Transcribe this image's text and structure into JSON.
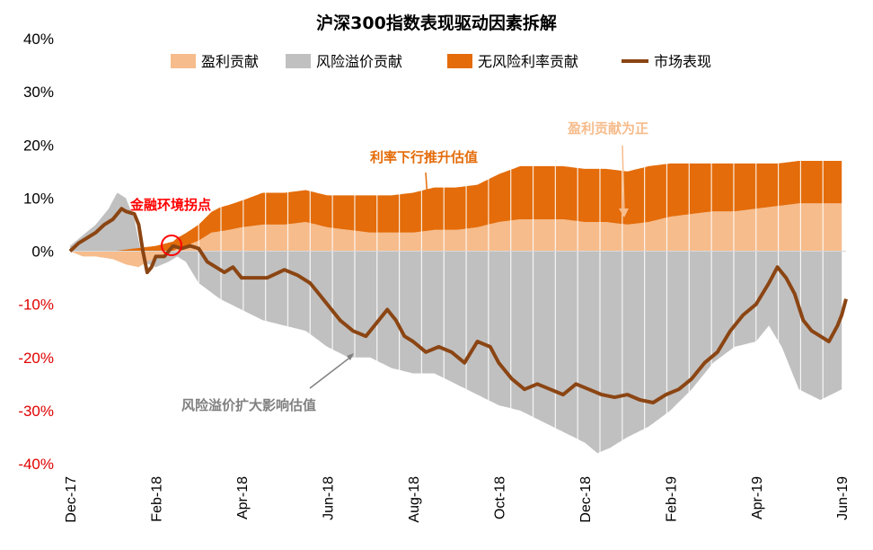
{
  "chart_data": {
    "type": "area",
    "title": "沪深300指数表现驱动因素拆解",
    "ylim": [
      -40,
      40
    ],
    "y_ticks": [
      "40%",
      "30%",
      "20%",
      "10%",
      "0%",
      "-10%",
      "-20%",
      "-30%",
      "-40%"
    ],
    "x_ticks": [
      "Dec-17",
      "Feb-18",
      "Apr-18",
      "Jun-18",
      "Aug-18",
      "Oct-18",
      "Dec-18",
      "Feb-19",
      "Apr-19",
      "Jun-19"
    ],
    "x_tick_months": [
      0,
      2,
      4,
      6,
      8,
      10,
      12,
      14,
      16,
      18
    ],
    "x_range_months": [
      0,
      18.1
    ],
    "series": [
      {
        "name": "盈利贡献",
        "kind": "stacked-area",
        "color": "#f6bc8c",
        "points": [
          [
            0.0,
            0
          ],
          [
            0.3,
            -1
          ],
          [
            0.6,
            -1
          ],
          [
            1.0,
            -1.5
          ],
          [
            1.3,
            -2.5
          ],
          [
            1.6,
            -3
          ],
          [
            1.8,
            -2
          ],
          [
            2.1,
            -1
          ],
          [
            2.3,
            -0.5
          ],
          [
            2.5,
            0.5
          ],
          [
            2.7,
            1
          ],
          [
            3.0,
            2
          ],
          [
            3.3,
            3.5
          ],
          [
            3.7,
            4
          ],
          [
            4.0,
            4.5
          ],
          [
            4.5,
            5
          ],
          [
            5.0,
            5
          ],
          [
            5.5,
            5.5
          ],
          [
            6.0,
            4.5
          ],
          [
            6.5,
            4
          ],
          [
            7.0,
            3.5
          ],
          [
            7.5,
            3.5
          ],
          [
            8.0,
            3.5
          ],
          [
            8.5,
            4
          ],
          [
            9.0,
            4
          ],
          [
            9.5,
            4.5
          ],
          [
            10.0,
            5.5
          ],
          [
            10.5,
            6
          ],
          [
            11.0,
            6
          ],
          [
            11.5,
            6
          ],
          [
            12.0,
            5.5
          ],
          [
            12.5,
            5.5
          ],
          [
            13.0,
            5
          ],
          [
            13.5,
            5.5
          ],
          [
            14.0,
            6.5
          ],
          [
            14.5,
            7
          ],
          [
            15.0,
            7.5
          ],
          [
            15.5,
            7.5
          ],
          [
            16.0,
            8
          ],
          [
            16.5,
            8.5
          ],
          [
            17.0,
            9
          ],
          [
            17.5,
            9
          ],
          [
            18.0,
            9
          ]
        ]
      },
      {
        "name": "风险溢价贡献",
        "kind": "stacked-area",
        "color": "#c0c0c0",
        "points": [
          [
            0.0,
            1
          ],
          [
            0.3,
            3
          ],
          [
            0.6,
            5
          ],
          [
            0.9,
            8
          ],
          [
            1.1,
            11
          ],
          [
            1.3,
            10
          ],
          [
            1.5,
            6
          ],
          [
            1.7,
            -2
          ],
          [
            2.0,
            -3
          ],
          [
            2.3,
            -2
          ],
          [
            2.5,
            -1
          ],
          [
            2.7,
            -2
          ],
          [
            3.0,
            -6
          ],
          [
            3.5,
            -9
          ],
          [
            4.0,
            -11
          ],
          [
            4.5,
            -13
          ],
          [
            5.0,
            -14
          ],
          [
            5.5,
            -15
          ],
          [
            6.0,
            -18
          ],
          [
            6.5,
            -20
          ],
          [
            7.0,
            -20
          ],
          [
            7.5,
            -22
          ],
          [
            8.0,
            -23
          ],
          [
            8.5,
            -23
          ],
          [
            9.0,
            -25
          ],
          [
            9.5,
            -27
          ],
          [
            10.0,
            -29
          ],
          [
            10.5,
            -30
          ],
          [
            11.0,
            -32
          ],
          [
            11.5,
            -34
          ],
          [
            12.0,
            -36
          ],
          [
            12.3,
            -38
          ],
          [
            12.6,
            -37
          ],
          [
            13.0,
            -35
          ],
          [
            13.5,
            -33
          ],
          [
            14.0,
            -30
          ],
          [
            14.5,
            -26
          ],
          [
            15.0,
            -21
          ],
          [
            15.5,
            -18
          ],
          [
            16.0,
            -17
          ],
          [
            16.3,
            -14
          ],
          [
            16.6,
            -18
          ],
          [
            17.0,
            -26
          ],
          [
            17.5,
            -28
          ],
          [
            18.0,
            -26
          ]
        ]
      },
      {
        "name": "无风险利率贡献",
        "kind": "stacked-area",
        "color": "#e46c0a",
        "points": [
          [
            0.0,
            0
          ],
          [
            1.0,
            0
          ],
          [
            2.0,
            1
          ],
          [
            2.5,
            2
          ],
          [
            3.0,
            3
          ],
          [
            3.5,
            4.5
          ],
          [
            4.0,
            5
          ],
          [
            4.5,
            6
          ],
          [
            5.0,
            6
          ],
          [
            5.5,
            6
          ],
          [
            6.0,
            6
          ],
          [
            6.5,
            6.5
          ],
          [
            7.0,
            7
          ],
          [
            7.5,
            7
          ],
          [
            8.0,
            7.5
          ],
          [
            8.5,
            8
          ],
          [
            9.0,
            8
          ],
          [
            9.5,
            8
          ],
          [
            10.0,
            9
          ],
          [
            10.5,
            10
          ],
          [
            11.0,
            10
          ],
          [
            11.5,
            10
          ],
          [
            12.0,
            10
          ],
          [
            12.5,
            10
          ],
          [
            13.0,
            10
          ],
          [
            13.5,
            10.5
          ],
          [
            14.0,
            10
          ],
          [
            14.5,
            9.5
          ],
          [
            15.0,
            9
          ],
          [
            15.5,
            9
          ],
          [
            16.0,
            8.5
          ],
          [
            16.5,
            8
          ],
          [
            17.0,
            8
          ],
          [
            17.5,
            8
          ],
          [
            18.0,
            8
          ]
        ]
      },
      {
        "name": "市场表现",
        "kind": "line",
        "color": "#8b4513",
        "points": [
          [
            0.0,
            0
          ],
          [
            0.2,
            1.5
          ],
          [
            0.4,
            2.5
          ],
          [
            0.6,
            3.5
          ],
          [
            0.8,
            5
          ],
          [
            1.0,
            6
          ],
          [
            1.2,
            8
          ],
          [
            1.3,
            7.5
          ],
          [
            1.5,
            7
          ],
          [
            1.6,
            5
          ],
          [
            1.7,
            0
          ],
          [
            1.8,
            -4
          ],
          [
            1.9,
            -3
          ],
          [
            2.0,
            -1
          ],
          [
            2.2,
            -1
          ],
          [
            2.4,
            1
          ],
          [
            2.6,
            0.5
          ],
          [
            2.8,
            1
          ],
          [
            3.0,
            0.5
          ],
          [
            3.2,
            -2
          ],
          [
            3.4,
            -3
          ],
          [
            3.6,
            -4
          ],
          [
            3.8,
            -3
          ],
          [
            4.0,
            -5
          ],
          [
            4.3,
            -5
          ],
          [
            4.6,
            -5
          ],
          [
            5.0,
            -3.5
          ],
          [
            5.3,
            -4.5
          ],
          [
            5.6,
            -6
          ],
          [
            5.8,
            -8
          ],
          [
            6.0,
            -10
          ],
          [
            6.3,
            -13
          ],
          [
            6.6,
            -15
          ],
          [
            6.9,
            -16
          ],
          [
            7.2,
            -13
          ],
          [
            7.4,
            -11
          ],
          [
            7.6,
            -13
          ],
          [
            7.8,
            -16
          ],
          [
            8.0,
            -17
          ],
          [
            8.3,
            -19
          ],
          [
            8.6,
            -18
          ],
          [
            8.9,
            -19
          ],
          [
            9.2,
            -21
          ],
          [
            9.5,
            -17
          ],
          [
            9.8,
            -18
          ],
          [
            10.0,
            -21
          ],
          [
            10.3,
            -24
          ],
          [
            10.6,
            -26
          ],
          [
            10.9,
            -25
          ],
          [
            11.2,
            -26
          ],
          [
            11.5,
            -27
          ],
          [
            11.8,
            -25
          ],
          [
            12.1,
            -26
          ],
          [
            12.4,
            -27
          ],
          [
            12.7,
            -27.5
          ],
          [
            13.0,
            -27
          ],
          [
            13.3,
            -28
          ],
          [
            13.6,
            -28.5
          ],
          [
            13.9,
            -27
          ],
          [
            14.2,
            -26
          ],
          [
            14.5,
            -24
          ],
          [
            14.8,
            -21
          ],
          [
            15.1,
            -19
          ],
          [
            15.4,
            -15
          ],
          [
            15.7,
            -12
          ],
          [
            16.0,
            -10
          ],
          [
            16.3,
            -6
          ],
          [
            16.5,
            -3
          ],
          [
            16.7,
            -5
          ],
          [
            16.9,
            -8
          ],
          [
            17.1,
            -13
          ],
          [
            17.3,
            -15
          ],
          [
            17.5,
            -16
          ],
          [
            17.7,
            -17
          ],
          [
            17.9,
            -14
          ],
          [
            18.0,
            -12
          ],
          [
            18.1,
            -9
          ]
        ]
      }
    ],
    "annotations": [
      {
        "text": "金融环境拐点",
        "color": "#ff0000"
      },
      {
        "text": "利率下行推升估值",
        "color": "#e46c0a"
      },
      {
        "text": "盈利贡献为正",
        "color": "#f6bc8c"
      },
      {
        "text": "风险溢价扩大影响估值",
        "color": "#808080"
      }
    ],
    "legend_position": "top"
  }
}
